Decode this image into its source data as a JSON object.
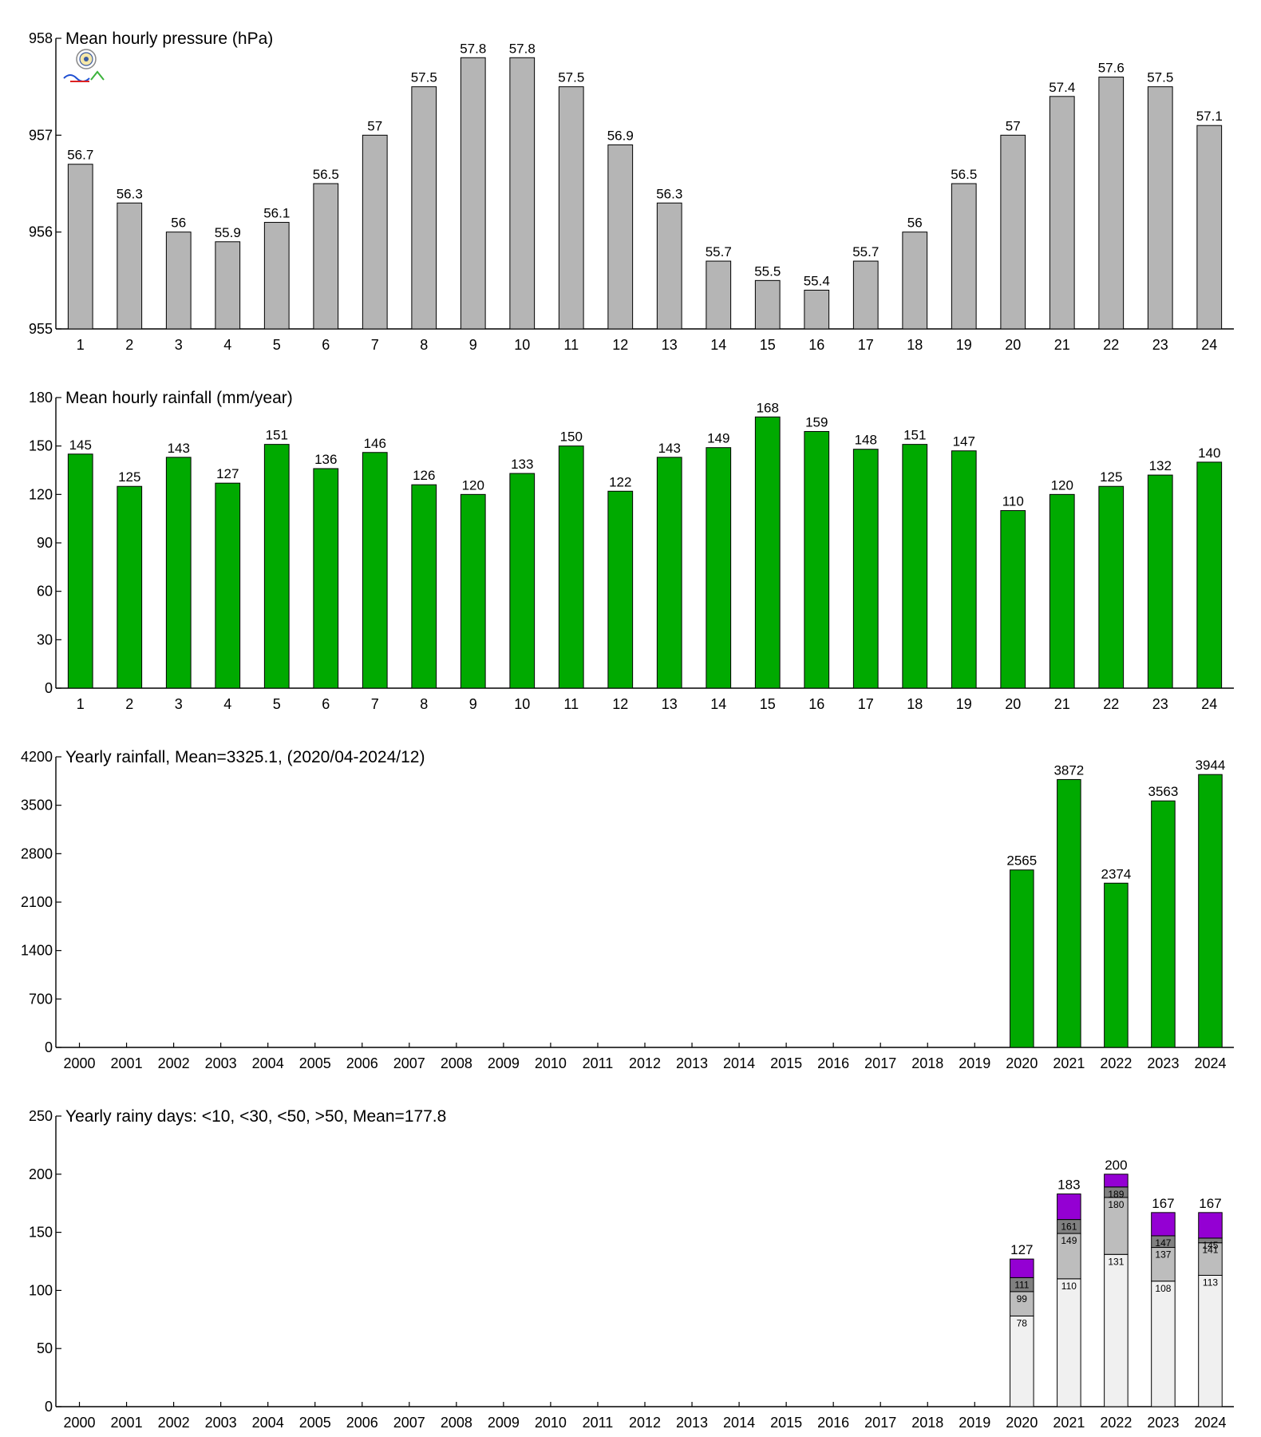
{
  "colors": {
    "gray_bar": "#b5b5b5",
    "green_bar": "#00aa00",
    "stack_lt10": "#f0f0f0",
    "stack_lt30": "#bdbdbd",
    "stack_lt50": "#808080",
    "stack_gt50": "#9400d3",
    "axis": "#000000"
  },
  "chart_data": [
    {
      "id": "pressure",
      "type": "bar",
      "title": "Mean hourly pressure (hPa)",
      "categories": [
        "1",
        "2",
        "3",
        "4",
        "5",
        "6",
        "7",
        "8",
        "9",
        "10",
        "11",
        "12",
        "13",
        "14",
        "15",
        "16",
        "17",
        "18",
        "19",
        "20",
        "21",
        "22",
        "23",
        "24"
      ],
      "values": [
        956.7,
        956.3,
        956.0,
        955.9,
        956.1,
        956.5,
        957.0,
        957.5,
        957.8,
        957.8,
        957.5,
        956.9,
        956.3,
        955.7,
        955.5,
        955.4,
        955.7,
        956.0,
        956.5,
        957.0,
        957.4,
        957.6,
        957.5,
        957.1
      ],
      "labels": [
        "56.7",
        "56.3",
        "56",
        "55.9",
        "56.1",
        "56.5",
        "57",
        "57.5",
        "57.8",
        "57.8",
        "57.5",
        "56.9",
        "56.3",
        "55.7",
        "55.5",
        "55.4",
        "55.7",
        "56",
        "56.5",
        "57",
        "57.4",
        "57.6",
        "57.5",
        "57.1"
      ],
      "ylim": [
        955,
        958
      ],
      "yticks": [
        "955",
        "956",
        "957",
        "958"
      ],
      "color_key": "gray_bar"
    },
    {
      "id": "hourly-rain",
      "type": "bar",
      "title": "Mean hourly rainfall (mm/year)",
      "categories": [
        "1",
        "2",
        "3",
        "4",
        "5",
        "6",
        "7",
        "8",
        "9",
        "10",
        "11",
        "12",
        "13",
        "14",
        "15",
        "16",
        "17",
        "18",
        "19",
        "20",
        "21",
        "22",
        "23",
        "24"
      ],
      "values": [
        145,
        125,
        143,
        127,
        151,
        136,
        146,
        126,
        120,
        133,
        150,
        122,
        143,
        149,
        168,
        159,
        148,
        151,
        147,
        110,
        120,
        125,
        132,
        140
      ],
      "labels": [
        "145",
        "125",
        "143",
        "127",
        "151",
        "136",
        "146",
        "126",
        "120",
        "133",
        "150",
        "122",
        "143",
        "149",
        "168",
        "159",
        "148",
        "151",
        "147",
        "110",
        "120",
        "125",
        "132",
        "140"
      ],
      "ylim": [
        0,
        180
      ],
      "yticks": [
        "0",
        "30",
        "60",
        "90",
        "120",
        "150",
        "180"
      ],
      "color_key": "green_bar"
    },
    {
      "id": "yearly-rain",
      "type": "bar",
      "title": "Yearly rainfall, Mean=3325.1, (2020/04-2024/12)",
      "categories": [
        "2000",
        "2001",
        "2002",
        "2003",
        "2004",
        "2005",
        "2006",
        "2007",
        "2008",
        "2009",
        "2010",
        "2011",
        "2012",
        "2013",
        "2014",
        "2015",
        "2016",
        "2017",
        "2018",
        "2019",
        "2020",
        "2021",
        "2022",
        "2023",
        "2024"
      ],
      "values": [
        null,
        null,
        null,
        null,
        null,
        null,
        null,
        null,
        null,
        null,
        null,
        null,
        null,
        null,
        null,
        null,
        null,
        null,
        null,
        null,
        2565,
        3872,
        2374,
        3563,
        3944
      ],
      "labels": [
        "",
        "",
        "",
        "",
        "",
        "",
        "",
        "",
        "",
        "",
        "",
        "",
        "",
        "",
        "",
        "",
        "",
        "",
        "",
        "",
        "2565",
        "3872",
        "2374",
        "3563",
        "3944"
      ],
      "ylim": [
        0,
        4200
      ],
      "yticks": [
        "0",
        "700",
        "1400",
        "2100",
        "2800",
        "3500",
        "4200"
      ],
      "color_key": "green_bar"
    },
    {
      "id": "rainy-days",
      "type": "bar",
      "stacked": true,
      "title": "Yearly rainy days: <10, <30, <50, >50, Mean=177.8",
      "categories": [
        "2000",
        "2001",
        "2002",
        "2003",
        "2004",
        "2005",
        "2006",
        "2007",
        "2008",
        "2009",
        "2010",
        "2011",
        "2012",
        "2013",
        "2014",
        "2015",
        "2016",
        "2017",
        "2018",
        "2019",
        "2020",
        "2021",
        "2022",
        "2023",
        "2024"
      ],
      "series": [
        {
          "name": "<10",
          "color_key": "stack_lt10",
          "cumulative": [
            null,
            null,
            null,
            null,
            null,
            null,
            null,
            null,
            null,
            null,
            null,
            null,
            null,
            null,
            null,
            null,
            null,
            null,
            null,
            null,
            78,
            110,
            131,
            108,
            113
          ]
        },
        {
          "name": "<30",
          "color_key": "stack_lt30",
          "cumulative": [
            null,
            null,
            null,
            null,
            null,
            null,
            null,
            null,
            null,
            null,
            null,
            null,
            null,
            null,
            null,
            null,
            null,
            null,
            null,
            null,
            99,
            149,
            180,
            137,
            141
          ]
        },
        {
          "name": "<50",
          "color_key": "stack_lt50",
          "cumulative": [
            null,
            null,
            null,
            null,
            null,
            null,
            null,
            null,
            null,
            null,
            null,
            null,
            null,
            null,
            null,
            null,
            null,
            null,
            null,
            null,
            111,
            161,
            189,
            147,
            145
          ]
        },
        {
          "name": ">50",
          "color_key": "stack_gt50",
          "cumulative": [
            null,
            null,
            null,
            null,
            null,
            null,
            null,
            null,
            null,
            null,
            null,
            null,
            null,
            null,
            null,
            null,
            null,
            null,
            null,
            null,
            127,
            183,
            200,
            167,
            167
          ]
        }
      ],
      "labels": [
        "",
        "",
        "",
        "",
        "",
        "",
        "",
        "",
        "",
        "",
        "",
        "",
        "",
        "",
        "",
        "",
        "",
        "",
        "",
        "",
        "127",
        "183",
        "200",
        "167",
        "167"
      ],
      "seg_labels": [
        null,
        null,
        null,
        null,
        null,
        null,
        null,
        null,
        null,
        null,
        null,
        null,
        null,
        null,
        null,
        null,
        null,
        null,
        null,
        null,
        [
          "78",
          "99",
          "111"
        ],
        [
          "110",
          "149",
          "161"
        ],
        [
          "131",
          "180",
          "189"
        ],
        [
          "108",
          "137",
          "147"
        ],
        [
          "113",
          "141",
          "145"
        ]
      ],
      "ylim": [
        0,
        250
      ],
      "yticks": [
        "0",
        "50",
        "100",
        "150",
        "200",
        "250"
      ]
    }
  ]
}
